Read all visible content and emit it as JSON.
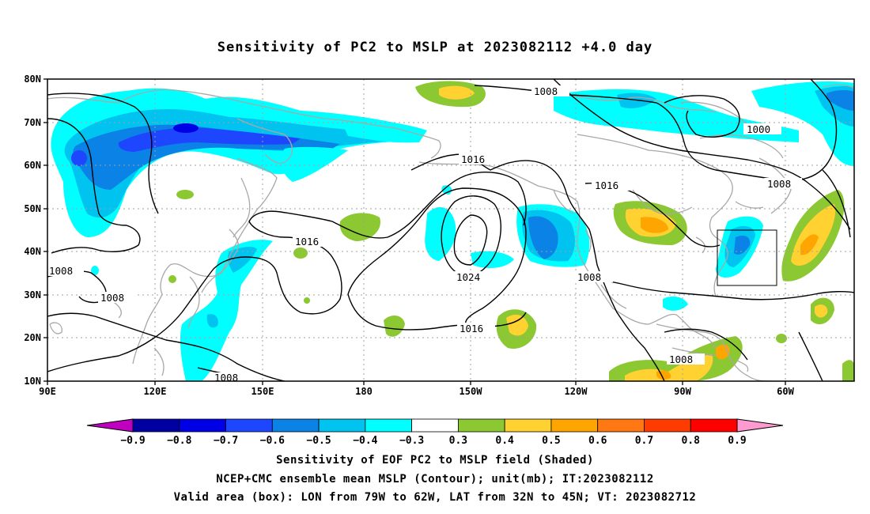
{
  "title": "Sensitivity of PC2 to MSLP at 2023082112 +4.0 day",
  "lat_ticks": [
    "80N",
    "70N",
    "60N",
    "50N",
    "40N",
    "30N",
    "20N",
    "10N"
  ],
  "lon_ticks": [
    "90E",
    "120E",
    "150E",
    "180",
    "150W",
    "120W",
    "90W",
    "60W"
  ],
  "contour_labels": [
    "1008",
    "1000",
    "1016",
    "1016",
    "1008",
    "1016",
    "1024",
    "1008",
    "1008",
    "1008",
    "1016",
    "1008",
    "1008"
  ],
  "colorbar": {
    "labels": [
      "-0.9",
      "-0.8",
      "-0.7",
      "-0.6",
      "-0.5",
      "-0.4",
      "-0.3",
      "0.3",
      "0.4",
      "0.5",
      "0.6",
      "0.7",
      "0.8",
      "0.9"
    ],
    "colors": [
      "#c000c0",
      "#0000a0",
      "#0000e6",
      "#1e46ff",
      "#0a82e6",
      "#00c3f0",
      "#00ffff",
      "#ffffff",
      "#8cc832",
      "#ffd232",
      "#ffa500",
      "#ff7814",
      "#ff3c00",
      "#ff0000",
      "#ff9ad0"
    ]
  },
  "footer": {
    "line1": "Sensitivity of EOF PC2 to MSLP field (Shaded)",
    "line2": "NCEP+CMC ensemble mean MSLP (Contour); unit(mb); IT:2023082112",
    "line3": "Valid area (box): LON from 79W to 62W, LAT from 32N to 45N; VT: 2023082712"
  }
}
